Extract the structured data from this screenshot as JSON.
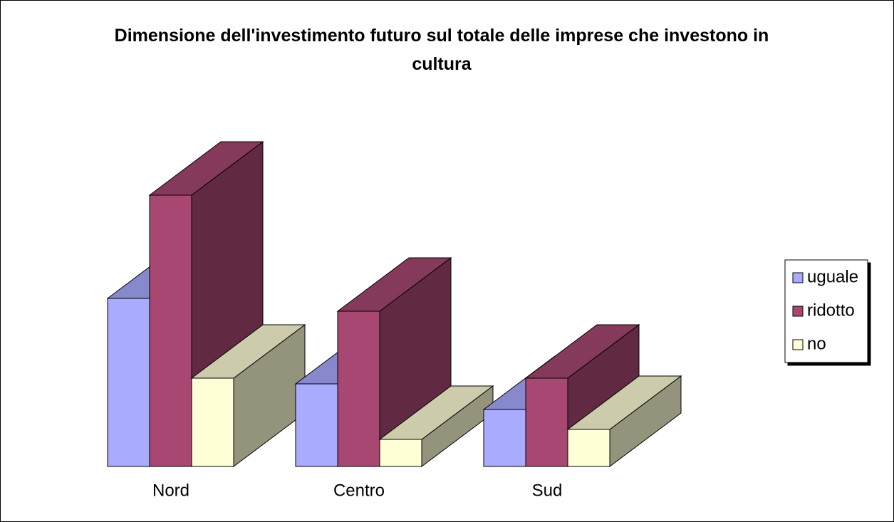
{
  "chart_data": {
    "type": "bar3d",
    "title": "Dimensione dell'investimento futuro sul totale delle imprese che investono in cultura",
    "categories": [
      "Nord",
      "Centro",
      "Sud"
    ],
    "series": [
      {
        "name": "uguale",
        "color": "#a9abff",
        "values": [
          236,
          116,
          80
        ]
      },
      {
        "name": "ridotto",
        "color": "#a84872",
        "values": [
          381,
          218,
          124
        ]
      },
      {
        "name": "no",
        "color": "#ffffd8",
        "values": [
          124,
          38,
          52
        ]
      }
    ],
    "legend": "right"
  }
}
